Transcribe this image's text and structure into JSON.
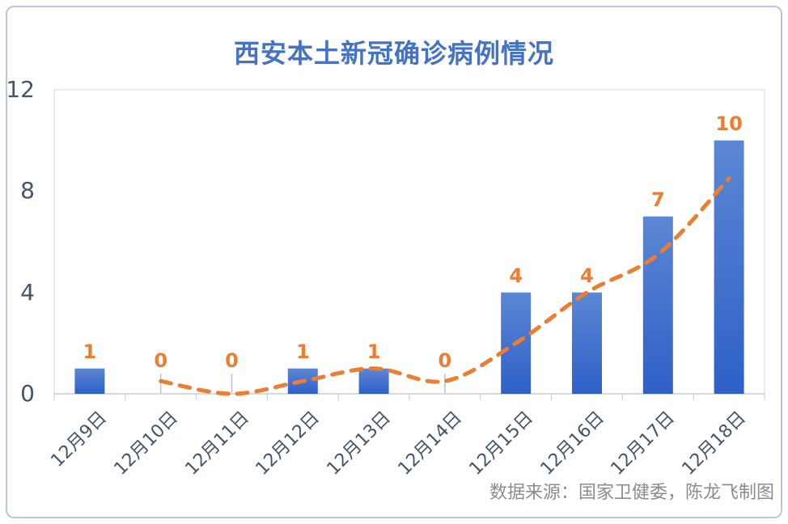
{
  "source_note": "数据来源：国家卫健委，陈龙飞制图",
  "colors": {
    "title_blue": "#4472C4",
    "bar_gradient_top": "#5C87D5",
    "bar_gradient_bottom": "#2E60C7",
    "orange_accent": "#ED7D31",
    "axis_label": "#44546A",
    "axis_line": "#CBD2DD",
    "plot_border": "#DCE5F2",
    "frame_border": "#B7C6E4",
    "leader_line": "#B6C0CE",
    "source_gray": "#8C8C8C"
  },
  "chart_data": {
    "type": "bar",
    "title": "西安本土新冠确诊病例情况",
    "categories": [
      "12月9日",
      "12月10日",
      "12月11日",
      "12月12日",
      "12月13日",
      "12月14日",
      "12月15日",
      "12月16日",
      "12月17日",
      "12月18日"
    ],
    "series": [
      {
        "name": "confirmed-cases-bars",
        "type": "bar",
        "values": [
          1,
          0,
          0,
          1,
          1,
          0,
          4,
          4,
          7,
          10
        ],
        "data_labels": [
          "1",
          "0",
          "0",
          "1",
          "1",
          "0",
          "4",
          "4",
          "7",
          "10"
        ]
      },
      {
        "name": "trend-dashed-line",
        "type": "line",
        "smooth": true,
        "dashed": true,
        "start_index": 1,
        "values": [
          0.5,
          0,
          0.5,
          1,
          0.5,
          2,
          4,
          5.5,
          8.5
        ]
      }
    ],
    "ylim": [
      0,
      12
    ],
    "yticks": [
      0,
      4,
      8,
      12
    ],
    "xlabel": "",
    "ylabel": "",
    "grid": false,
    "legend": "none",
    "zero_value_leader_lines": true
  }
}
